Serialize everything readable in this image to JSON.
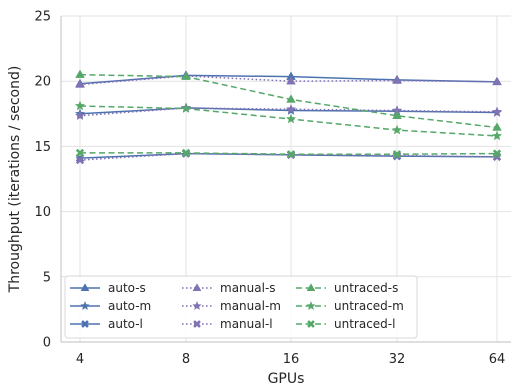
{
  "chart_data": {
    "type": "line",
    "title": "",
    "xlabel": "GPUs",
    "ylabel": "Throughput (iterations / second)",
    "x": [
      "4",
      "8",
      "16",
      "32",
      "64"
    ],
    "ylim": [
      0,
      25
    ],
    "yticks": [
      0,
      5,
      10,
      15,
      20,
      25
    ],
    "grid": true,
    "legend_position": "bottom-left",
    "legend_columns": 3,
    "series": [
      {
        "name": "auto-s",
        "values": [
          19.8,
          20.45,
          20.35,
          20.1,
          19.95
        ],
        "color": "#4c72b0",
        "linestyle": "solid",
        "marker": "triangle"
      },
      {
        "name": "auto-m",
        "values": [
          17.5,
          17.95,
          17.75,
          17.7,
          17.6
        ],
        "color": "#4c72b0",
        "linestyle": "solid",
        "marker": "star"
      },
      {
        "name": "auto-l",
        "values": [
          14.1,
          14.45,
          14.35,
          14.25,
          14.2
        ],
        "color": "#4c72b0",
        "linestyle": "solid",
        "marker": "x"
      },
      {
        "name": "manual-s",
        "values": [
          19.75,
          20.4,
          20.0,
          20.05,
          19.95
        ],
        "color": "#8172b3",
        "linestyle": "dotted",
        "marker": "triangle"
      },
      {
        "name": "manual-m",
        "values": [
          17.35,
          17.95,
          17.85,
          17.75,
          17.65
        ],
        "color": "#8172b3",
        "linestyle": "dotted",
        "marker": "star"
      },
      {
        "name": "manual-l",
        "values": [
          13.95,
          14.45,
          14.35,
          14.3,
          14.2
        ],
        "color": "#8172b3",
        "linestyle": "dotted",
        "marker": "x"
      },
      {
        "name": "untraced-s",
        "values": [
          20.5,
          20.35,
          18.6,
          17.35,
          16.45
        ],
        "color": "#55a868",
        "linestyle": "dashed",
        "marker": "triangle"
      },
      {
        "name": "untraced-m",
        "values": [
          18.1,
          17.9,
          17.1,
          16.25,
          15.8
        ],
        "color": "#55a868",
        "linestyle": "dashed",
        "marker": "star"
      },
      {
        "name": "untraced-l",
        "values": [
          14.5,
          14.5,
          14.4,
          14.4,
          14.45
        ],
        "color": "#55a868",
        "linestyle": "dashed",
        "marker": "x"
      }
    ]
  }
}
